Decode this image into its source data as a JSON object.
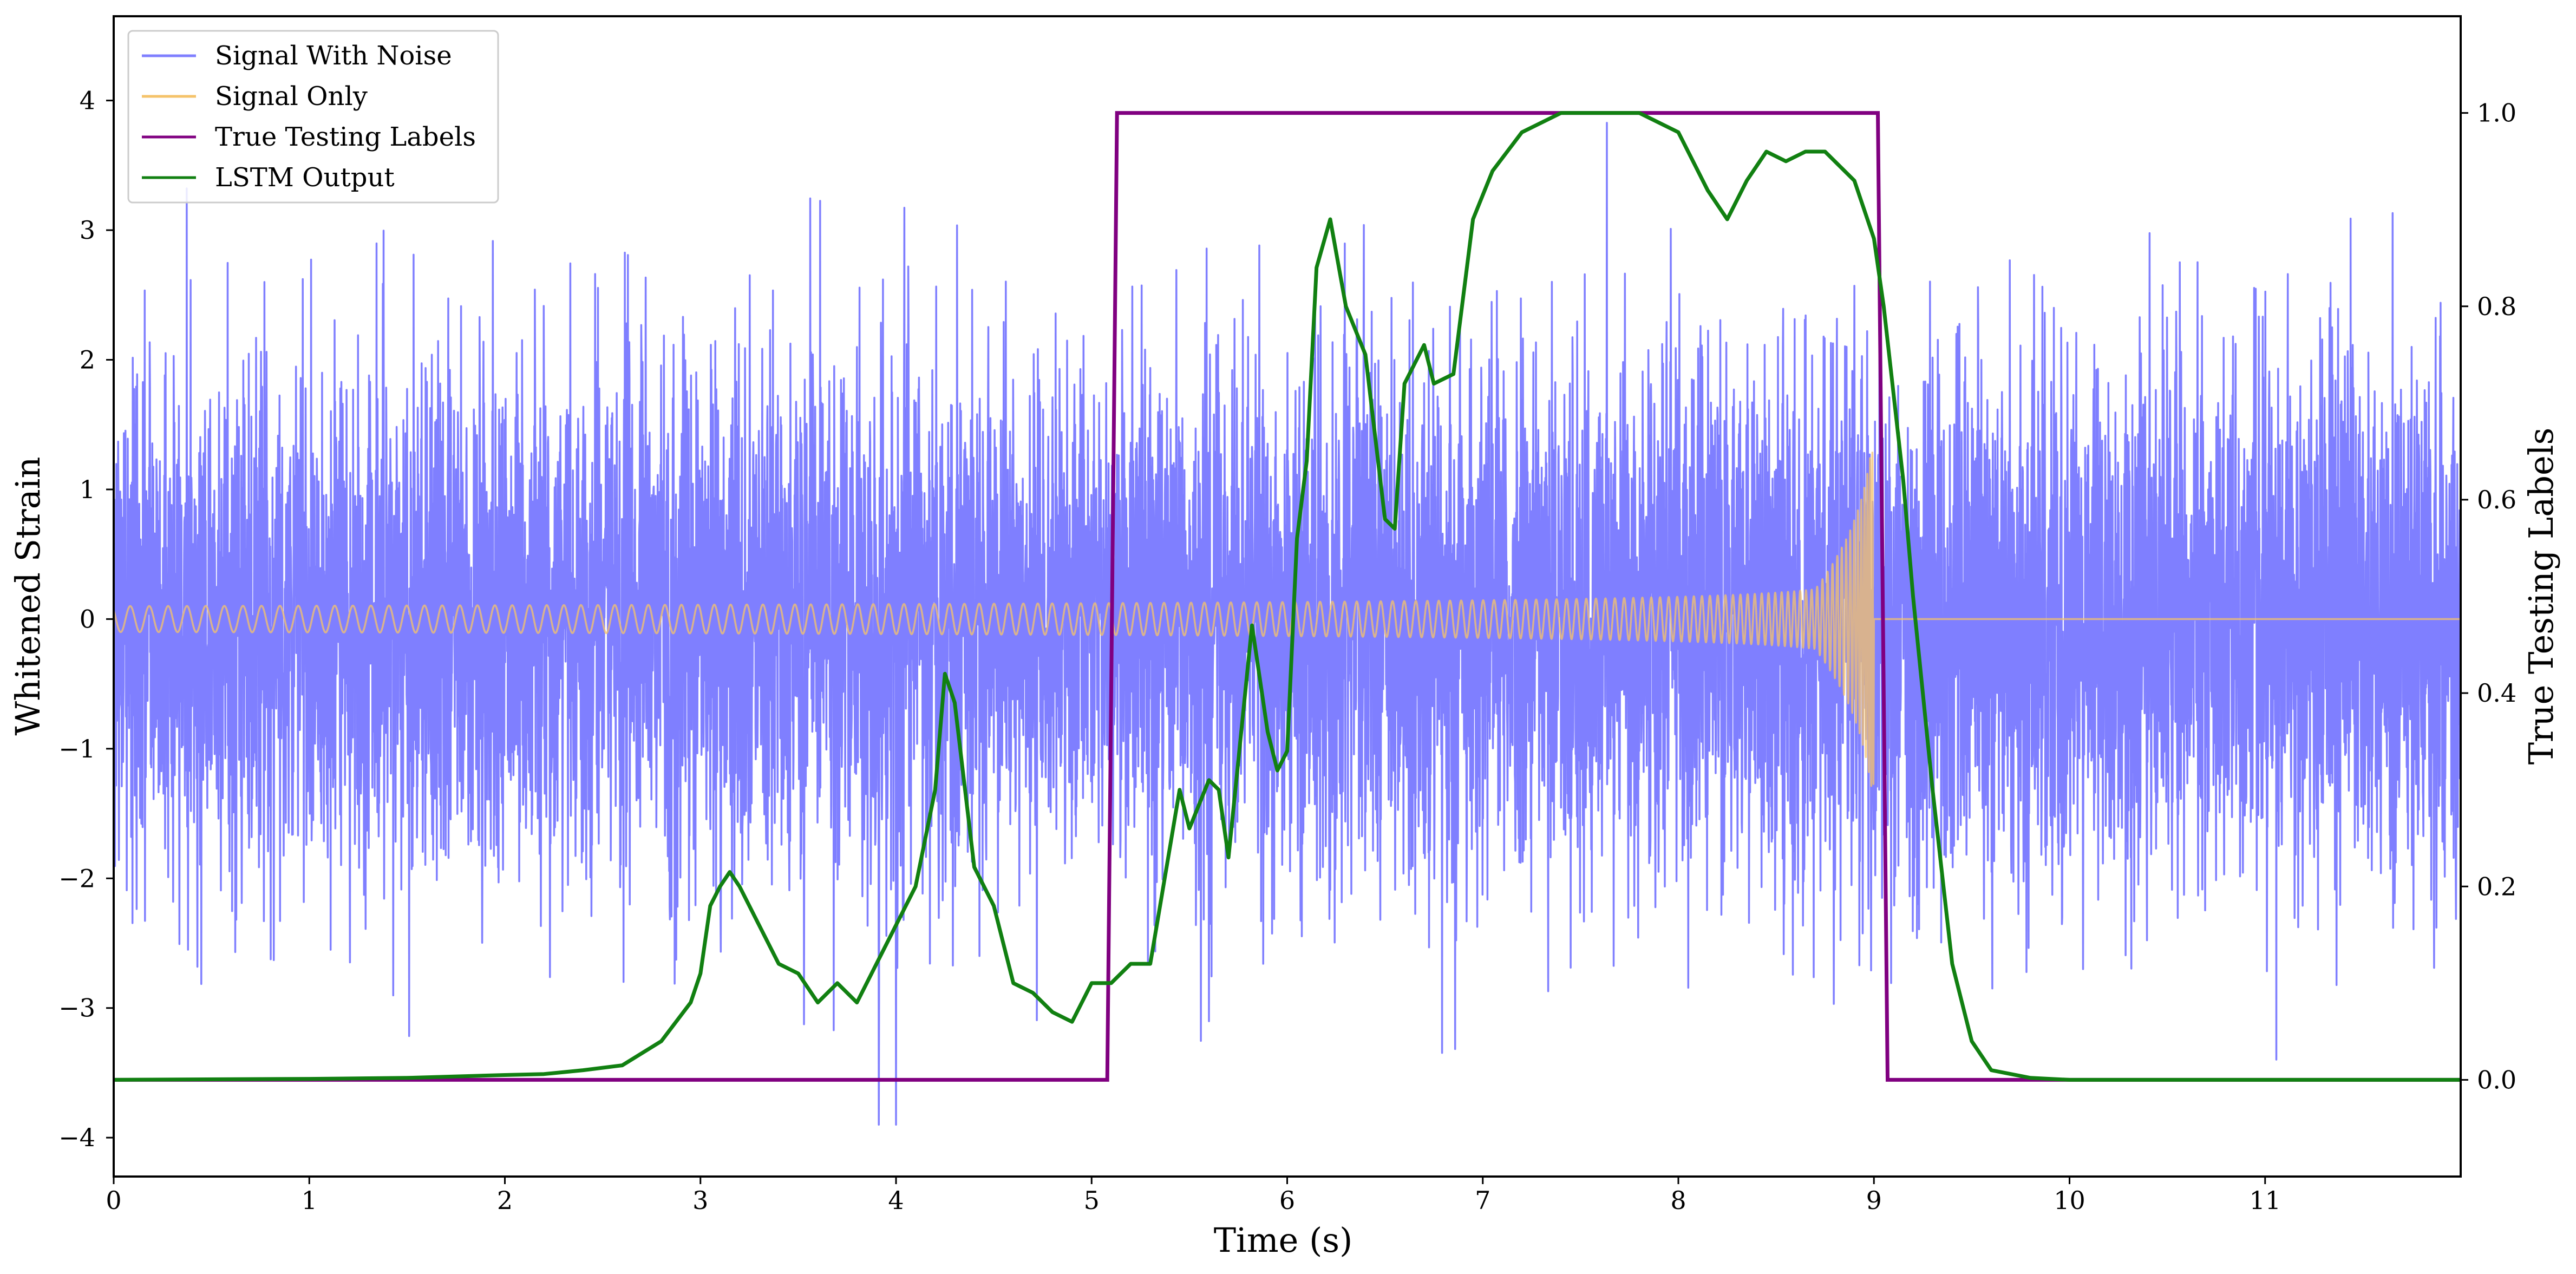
{
  "chart_data": {
    "type": "line",
    "xlabel": "Time (s)",
    "ylabel": "Whitened Strain",
    "y2label": "True Testing Labels",
    "xlim": [
      0,
      12
    ],
    "ylim": [
      -4.3,
      4.65
    ],
    "y2lim": [
      -0.1,
      1.1
    ],
    "x_ticks": [
      0,
      1,
      2,
      3,
      4,
      5,
      6,
      7,
      8,
      9,
      10,
      11
    ],
    "y_ticks": [
      -4,
      -3,
      -2,
      -1,
      0,
      1,
      2,
      3,
      4
    ],
    "y2_ticks": [
      0.0,
      0.2,
      0.4,
      0.6,
      0.8,
      1.0
    ],
    "legend_placement": "top-left",
    "grid": false,
    "series": [
      {
        "name": "Signal With Noise",
        "axis": "left",
        "color": "#7f7fff",
        "noise_sigma": 1.0,
        "range_observed": [
          -3.9,
          4.3
        ]
      },
      {
        "name": "Signal Only",
        "axis": "left",
        "color": "#f5c36a",
        "chirp_start_amplitude": 0.1,
        "chirp_end_amplitude": 1.3,
        "chirp_end_time": 9.0,
        "after_end": 0
      },
      {
        "name": "True Testing Labels",
        "axis": "right",
        "color": "#800080",
        "points": [
          [
            0,
            0
          ],
          [
            5.08,
            0
          ],
          [
            5.13,
            1
          ],
          [
            9.02,
            1
          ],
          [
            9.07,
            0
          ],
          [
            12,
            0
          ]
        ]
      },
      {
        "name": "LSTM Output",
        "axis": "right",
        "color": "#118011",
        "points": [
          [
            0,
            0.0
          ],
          [
            1.0,
            0.001
          ],
          [
            1.5,
            0.002
          ],
          [
            2.0,
            0.005
          ],
          [
            2.2,
            0.006
          ],
          [
            2.4,
            0.01
          ],
          [
            2.6,
            0.015
          ],
          [
            2.8,
            0.04
          ],
          [
            2.95,
            0.08
          ],
          [
            3.0,
            0.11
          ],
          [
            3.05,
            0.18
          ],
          [
            3.1,
            0.2
          ],
          [
            3.15,
            0.215
          ],
          [
            3.2,
            0.2
          ],
          [
            3.3,
            0.16
          ],
          [
            3.4,
            0.12
          ],
          [
            3.5,
            0.11
          ],
          [
            3.6,
            0.08
          ],
          [
            3.7,
            0.1
          ],
          [
            3.8,
            0.08
          ],
          [
            3.9,
            0.12
          ],
          [
            4.0,
            0.16
          ],
          [
            4.1,
            0.2
          ],
          [
            4.2,
            0.3
          ],
          [
            4.25,
            0.42
          ],
          [
            4.3,
            0.39
          ],
          [
            4.4,
            0.22
          ],
          [
            4.5,
            0.18
          ],
          [
            4.6,
            0.1
          ],
          [
            4.7,
            0.09
          ],
          [
            4.8,
            0.07
          ],
          [
            4.9,
            0.06
          ],
          [
            5.0,
            0.1
          ],
          [
            5.1,
            0.1
          ],
          [
            5.2,
            0.12
          ],
          [
            5.3,
            0.12
          ],
          [
            5.35,
            0.18
          ],
          [
            5.45,
            0.3
          ],
          [
            5.5,
            0.26
          ],
          [
            5.6,
            0.31
          ],
          [
            5.65,
            0.3
          ],
          [
            5.7,
            0.23
          ],
          [
            5.75,
            0.33
          ],
          [
            5.82,
            0.47
          ],
          [
            5.9,
            0.36
          ],
          [
            5.95,
            0.32
          ],
          [
            6.0,
            0.34
          ],
          [
            6.05,
            0.56
          ],
          [
            6.1,
            0.64
          ],
          [
            6.15,
            0.84
          ],
          [
            6.22,
            0.89
          ],
          [
            6.3,
            0.8
          ],
          [
            6.4,
            0.75
          ],
          [
            6.5,
            0.58
          ],
          [
            6.55,
            0.57
          ],
          [
            6.6,
            0.72
          ],
          [
            6.7,
            0.76
          ],
          [
            6.75,
            0.72
          ],
          [
            6.85,
            0.73
          ],
          [
            6.95,
            0.89
          ],
          [
            7.05,
            0.94
          ],
          [
            7.2,
            0.98
          ],
          [
            7.4,
            1.0
          ],
          [
            7.8,
            1.0
          ],
          [
            8.0,
            0.98
          ],
          [
            8.15,
            0.92
          ],
          [
            8.25,
            0.89
          ],
          [
            8.35,
            0.93
          ],
          [
            8.45,
            0.96
          ],
          [
            8.55,
            0.95
          ],
          [
            8.65,
            0.96
          ],
          [
            8.75,
            0.96
          ],
          [
            8.9,
            0.93
          ],
          [
            9.0,
            0.87
          ],
          [
            9.05,
            0.8
          ],
          [
            9.15,
            0.62
          ],
          [
            9.2,
            0.5
          ],
          [
            9.3,
            0.3
          ],
          [
            9.4,
            0.12
          ],
          [
            9.5,
            0.04
          ],
          [
            9.6,
            0.01
          ],
          [
            9.8,
            0.002
          ],
          [
            10.0,
            0.0
          ],
          [
            12.0,
            0.0
          ]
        ]
      }
    ]
  }
}
